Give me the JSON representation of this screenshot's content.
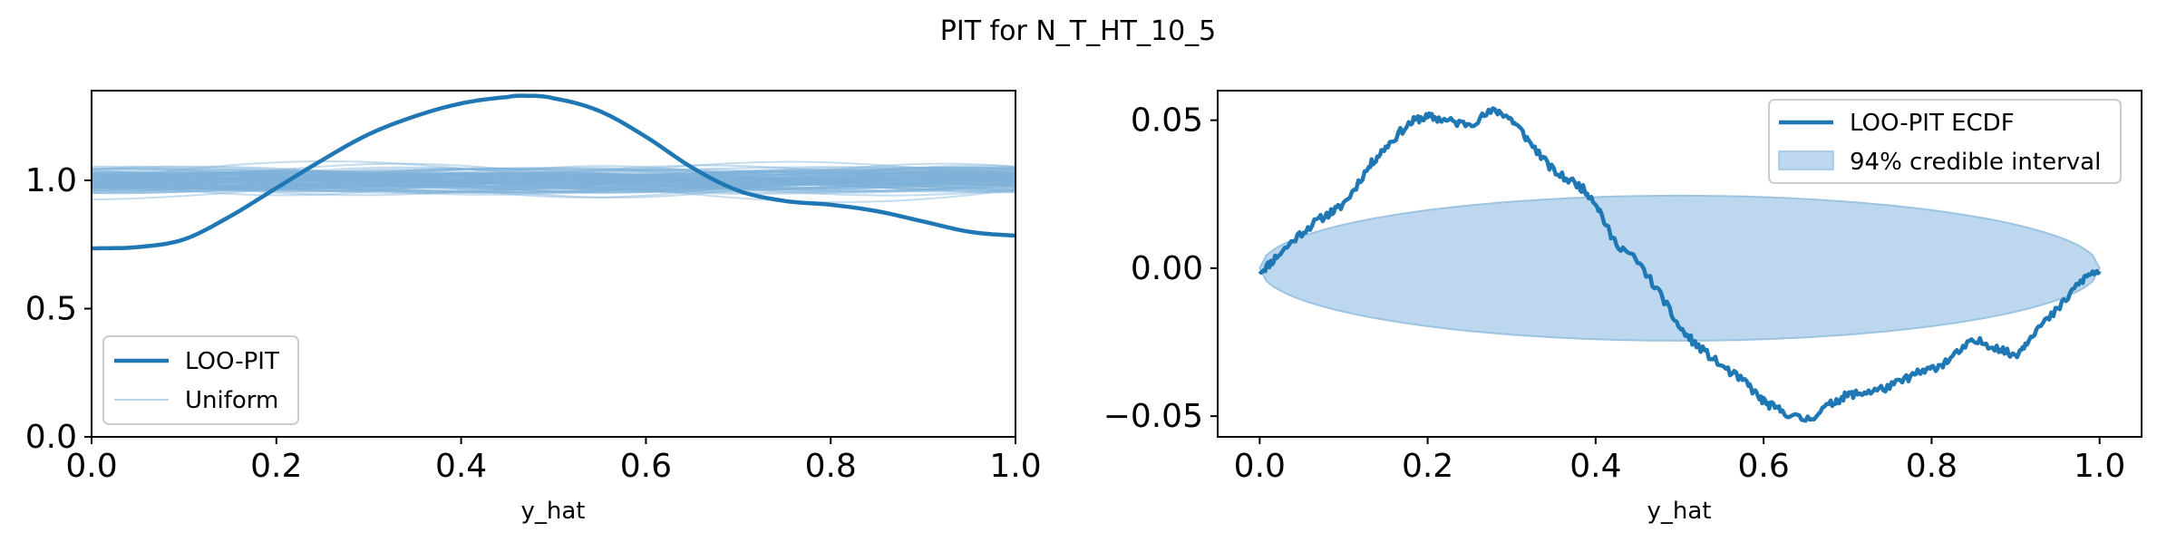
{
  "figure": {
    "title": "PIT for N_T_HT_10_5"
  },
  "colors": {
    "main": "#1f77b4",
    "reference": "#7fb2d9",
    "band_fill": "#bdd8ee",
    "band_edge": "#9cc3e2"
  },
  "chart_data": [
    {
      "type": "line",
      "panel": "left",
      "xlabel": "y_hat",
      "ylabel": "",
      "xlim": [
        0.0,
        1.0
      ],
      "ylim": [
        0.0,
        1.35
      ],
      "x_ticks": [
        "0.0",
        "0.2",
        "0.4",
        "0.6",
        "0.8",
        "1.0"
      ],
      "y_ticks": [
        "0.0",
        "0.5",
        "1.0"
      ],
      "legend": {
        "position": "lower-left",
        "entries": [
          "LOO-PIT",
          "Uniform"
        ]
      },
      "series": [
        {
          "name": "LOO-PIT",
          "x": [
            0.0,
            0.05,
            0.1,
            0.15,
            0.2,
            0.25,
            0.3,
            0.35,
            0.4,
            0.45,
            0.47,
            0.5,
            0.55,
            0.6,
            0.65,
            0.7,
            0.75,
            0.8,
            0.85,
            0.9,
            0.95,
            1.0
          ],
          "y": [
            0.735,
            0.74,
            0.77,
            0.86,
            0.97,
            1.08,
            1.18,
            1.25,
            1.3,
            1.325,
            1.33,
            1.32,
            1.27,
            1.17,
            1.05,
            0.96,
            0.92,
            0.905,
            0.88,
            0.84,
            0.8,
            0.785
          ]
        },
        {
          "name": "Uniform",
          "description_count": 100,
          "y_center": 1.0,
          "y_spread": 0.13
        }
      ]
    },
    {
      "type": "line",
      "panel": "right",
      "xlabel": "y_hat",
      "ylabel": "",
      "xlim": [
        -0.05,
        1.05
      ],
      "ylim": [
        -0.057,
        0.06
      ],
      "x_ticks": [
        "0.0",
        "0.2",
        "0.4",
        "0.6",
        "0.8",
        "1.0"
      ],
      "y_ticks": [
        "0.05",
        "0.00",
        "−0.05"
      ],
      "legend": {
        "position": "upper-right",
        "entries": [
          "LOO-PIT ECDF",
          "94% credible interval"
        ]
      },
      "series": [
        {
          "name": "LOO-PIT ECDF",
          "x": [
            0.0,
            0.02,
            0.05,
            0.08,
            0.1,
            0.13,
            0.15,
            0.18,
            0.2,
            0.22,
            0.25,
            0.28,
            0.3,
            0.32,
            0.35,
            0.38,
            0.4,
            0.42,
            0.45,
            0.48,
            0.5,
            0.52,
            0.55,
            0.58,
            0.6,
            0.62,
            0.65,
            0.68,
            0.7,
            0.72,
            0.75,
            0.78,
            0.8,
            0.82,
            0.85,
            0.88,
            0.9,
            0.92,
            0.95,
            0.98,
            1.0
          ],
          "y": [
            -0.001,
            0.004,
            0.012,
            0.018,
            0.022,
            0.034,
            0.041,
            0.049,
            0.051,
            0.05,
            0.049,
            0.053,
            0.05,
            0.043,
            0.033,
            0.028,
            0.022,
            0.01,
            0.002,
            -0.01,
            -0.02,
            -0.026,
            -0.033,
            -0.039,
            -0.045,
            -0.048,
            -0.051,
            -0.046,
            -0.043,
            -0.042,
            -0.04,
            -0.036,
            -0.034,
            -0.031,
            -0.025,
            -0.027,
            -0.029,
            -0.022,
            -0.014,
            -0.004,
            -0.001
          ]
        },
        {
          "name": "94% credible interval",
          "band_center": 0.0,
          "band_halfwidth": 0.0245,
          "x_range": [
            0.0,
            1.0
          ]
        }
      ]
    }
  ]
}
